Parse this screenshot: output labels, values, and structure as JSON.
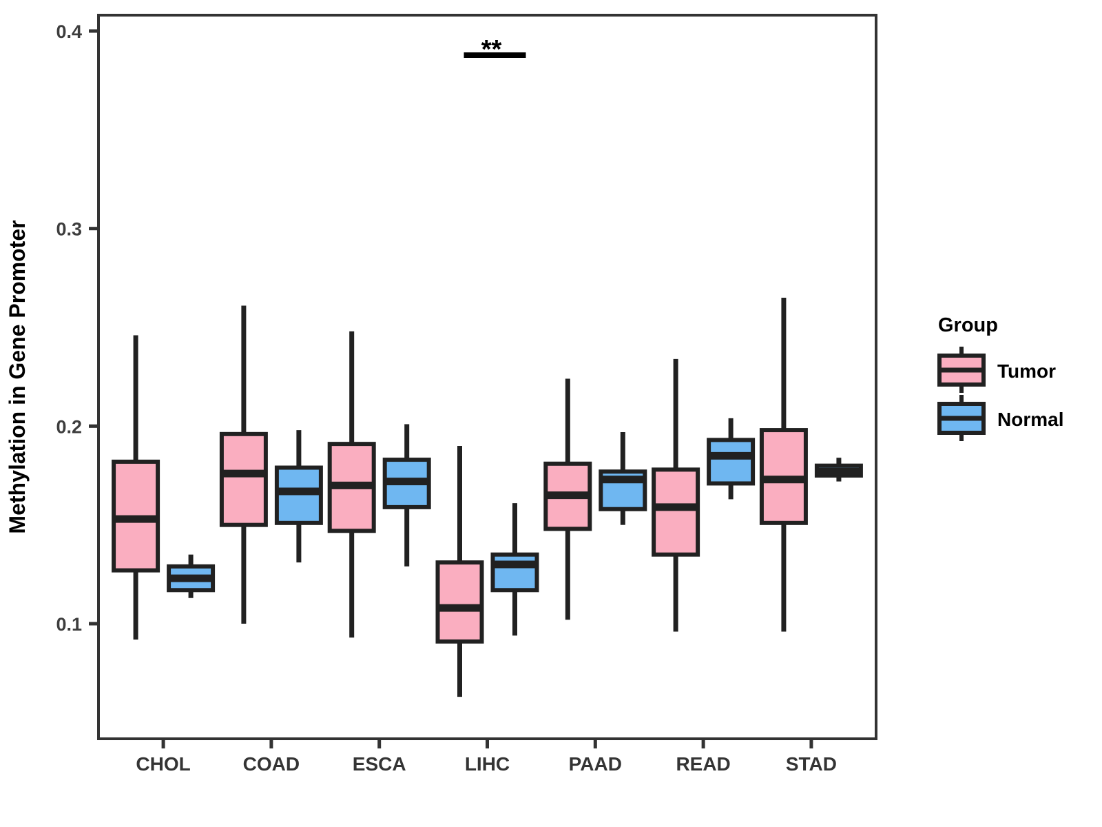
{
  "chart_data": {
    "type": "boxplot",
    "title": "",
    "ylabel": "Methylation in Gene Promoter",
    "xlabel": "",
    "categories": [
      "CHOL",
      "COAD",
      "ESCA",
      "LIHC",
      "PAAD",
      "READ",
      "STAD"
    ],
    "yticks": [
      0.1,
      0.2,
      0.3,
      0.4
    ],
    "ytick_labels": [
      "0.1",
      "0.2",
      "0.3",
      "0.4"
    ],
    "ylim": [
      0.042,
      0.408
    ],
    "grid": false,
    "legend": {
      "title": "Group",
      "position": "right"
    },
    "groups": [
      {
        "name": "Tumor",
        "color": "#FAAEC0"
      },
      {
        "name": "Normal",
        "color": "#6FB7F1"
      }
    ],
    "series": [
      {
        "group": "Tumor",
        "stats_order": [
          "min",
          "q1",
          "median",
          "q3",
          "max"
        ],
        "boxes": {
          "CHOL": [
            0.092,
            0.127,
            0.153,
            0.182,
            0.246
          ],
          "COAD": [
            0.1,
            0.15,
            0.176,
            0.196,
            0.261
          ],
          "ESCA": [
            0.093,
            0.147,
            0.17,
            0.191,
            0.248
          ],
          "LIHC": [
            0.063,
            0.091,
            0.108,
            0.131,
            0.19
          ],
          "PAAD": [
            0.102,
            0.148,
            0.165,
            0.181,
            0.224
          ],
          "READ": [
            0.096,
            0.135,
            0.159,
            0.178,
            0.234
          ],
          "STAD": [
            0.096,
            0.151,
            0.173,
            0.198,
            0.265
          ]
        }
      },
      {
        "group": "Normal",
        "stats_order": [
          "min",
          "q1",
          "median",
          "q3",
          "max"
        ],
        "boxes": {
          "CHOL": [
            0.113,
            0.117,
            0.123,
            0.129,
            0.135
          ],
          "COAD": [
            0.131,
            0.151,
            0.167,
            0.179,
            0.198
          ],
          "ESCA": [
            0.129,
            0.159,
            0.172,
            0.183,
            0.201
          ],
          "LIHC": [
            0.094,
            0.117,
            0.13,
            0.135,
            0.161
          ],
          "PAAD": [
            0.15,
            0.158,
            0.173,
            0.177,
            0.197
          ],
          "READ": [
            0.163,
            0.171,
            0.185,
            0.193,
            0.204
          ],
          "STAD": [
            0.172,
            0.175,
            0.177,
            0.18,
            0.184
          ]
        }
      }
    ],
    "significance": {
      "category": "LIHC",
      "label": "**"
    }
  },
  "colors": {
    "background": "#ffffff",
    "panel_border": "#333333",
    "box_border": "#212121",
    "tick_mark": "#333333",
    "ytick_label": "#3d3d3d",
    "xtick_label": "#343434",
    "annotation": "#000000"
  }
}
